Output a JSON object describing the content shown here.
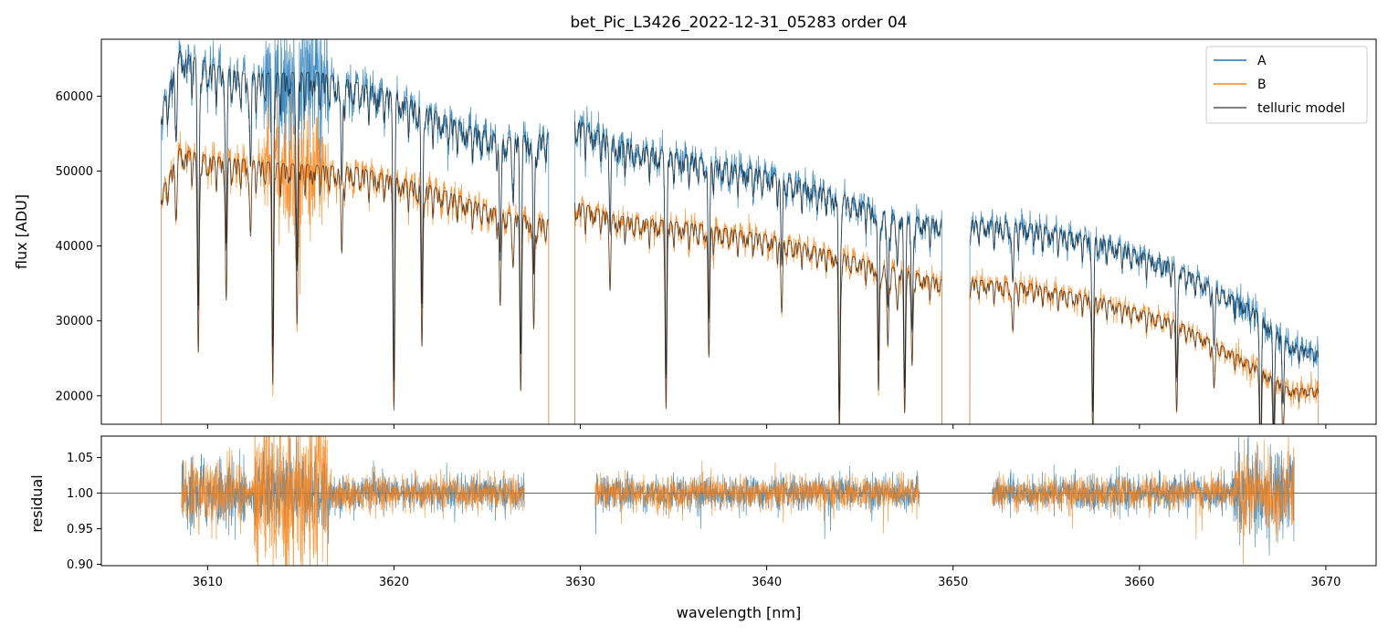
{
  "chart_data": [
    {
      "type": "line",
      "title": "bet_Pic_L3426_2022-12-31_05283  order 04",
      "xlabel": "",
      "ylabel": "flux [ADU]",
      "xlim": [
        3604.3,
        3672.7
      ],
      "ylim": [
        16200,
        67600
      ],
      "yticks": [
        20000,
        30000,
        40000,
        50000,
        60000
      ],
      "xticks": [
        3610,
        3620,
        3630,
        3640,
        3650,
        3660,
        3670
      ],
      "show_xtick_labels": false,
      "grid": false,
      "legend_position": "top-right",
      "segments": [
        {
          "x": [
            3607.5,
            3628.3
          ],
          "A_envelope": [
            [
              3607.5,
              58000
            ],
            [
              3608.5,
              66000
            ],
            [
              3610,
              64500
            ],
            [
              3612,
              63000
            ],
            [
              3616,
              63200
            ],
            [
              3620,
              60500
            ],
            [
              3624,
              56000
            ],
            [
              3626,
              54500
            ],
            [
              3628.3,
              55000
            ]
          ],
          "B_envelope": [
            [
              3607.5,
              47000
            ],
            [
              3608.5,
              53000
            ],
            [
              3610,
              52000
            ],
            [
              3614,
              51000
            ],
            [
              3618,
              50500
            ],
            [
              3622,
              48000
            ],
            [
              3626,
              44500
            ],
            [
              3628.3,
              43500
            ]
          ]
        },
        {
          "x": [
            3629.7,
            3649.4
          ],
          "A_envelope": [
            [
              3629.7,
              57000
            ],
            [
              3632,
              54000
            ],
            [
              3636,
              52000
            ],
            [
              3640,
              50000
            ],
            [
              3644,
              47000
            ],
            [
              3647,
              44000
            ],
            [
              3649.4,
              43500
            ]
          ],
          "B_envelope": [
            [
              3629.7,
              46000
            ],
            [
              3632,
              44000
            ],
            [
              3636,
              43000
            ],
            [
              3640,
              41500
            ],
            [
              3644,
              39000
            ],
            [
              3647,
              37000
            ],
            [
              3649.4,
              35500
            ]
          ]
        },
        {
          "x": [
            3650.9,
            3669.6
          ],
          "A_envelope": [
            [
              3650.9,
              43500
            ],
            [
              3654,
              43000
            ],
            [
              3658,
              41000
            ],
            [
              3662,
              37500
            ],
            [
              3666,
              32000
            ],
            [
              3668,
              27000
            ],
            [
              3669.6,
              26000
            ]
          ],
          "B_envelope": [
            [
              3650.9,
              35500
            ],
            [
              3654,
              35000
            ],
            [
              3658,
              33000
            ],
            [
              3662,
              30000
            ],
            [
              3666,
              24500
            ],
            [
              3668,
              21000
            ],
            [
              3669.6,
              21000
            ]
          ]
        }
      ],
      "telluric_lines_nm": [
        3608.3,
        3609.5,
        3611.0,
        3612.3,
        3613.5,
        3614.8,
        3617.2,
        3620.0,
        3621.5,
        3625.7,
        3626.4,
        3626.8,
        3627.5,
        3631.6,
        3634.6,
        3636.9,
        3640.8,
        3643.9,
        3646.0,
        3646.5,
        3647.0,
        3647.4,
        3647.8,
        3653.2,
        3657.5,
        3662.0,
        3664.0,
        3666.5,
        3667.2,
        3667.7
      ],
      "series": [
        {
          "name": "A",
          "color": "#1f77b4"
        },
        {
          "name": "B",
          "color": "#ff7f0e"
        },
        {
          "name": "telluric model",
          "color": "#555555"
        }
      ]
    },
    {
      "type": "line",
      "xlabel": "wavelength [nm]",
      "ylabel": "residual",
      "xlim": [
        3604.3,
        3672.7
      ],
      "ylim": [
        0.898,
        1.08
      ],
      "yticks": [
        0.9,
        0.95,
        1.0,
        1.05
      ],
      "xticks": [
        3610,
        3620,
        3630,
        3640,
        3650,
        3660,
        3670
      ],
      "reference_line": 1.0,
      "segments": [
        [
          3608.6,
          3627.0
        ],
        [
          3630.8,
          3648.2
        ],
        [
          3652.1,
          3668.3
        ]
      ],
      "series": [
        {
          "name": "A",
          "color": "#1f77b4"
        },
        {
          "name": "B",
          "color": "#ff7f0e"
        }
      ]
    }
  ],
  "legend": {
    "entries": [
      {
        "label": "A",
        "color": "#1f77b4"
      },
      {
        "label": "B",
        "color": "#ff7f0e"
      },
      {
        "label": "telluric model",
        "color": "#555555"
      }
    ]
  },
  "yticklabels_top": [
    "20000",
    "30000",
    "40000",
    "50000",
    "60000"
  ],
  "yticklabels_bottom": [
    "0.90",
    "0.95",
    "1.00",
    "1.05"
  ],
  "xticklabels": [
    "3610",
    "3620",
    "3630",
    "3640",
    "3650",
    "3660",
    "3670"
  ]
}
